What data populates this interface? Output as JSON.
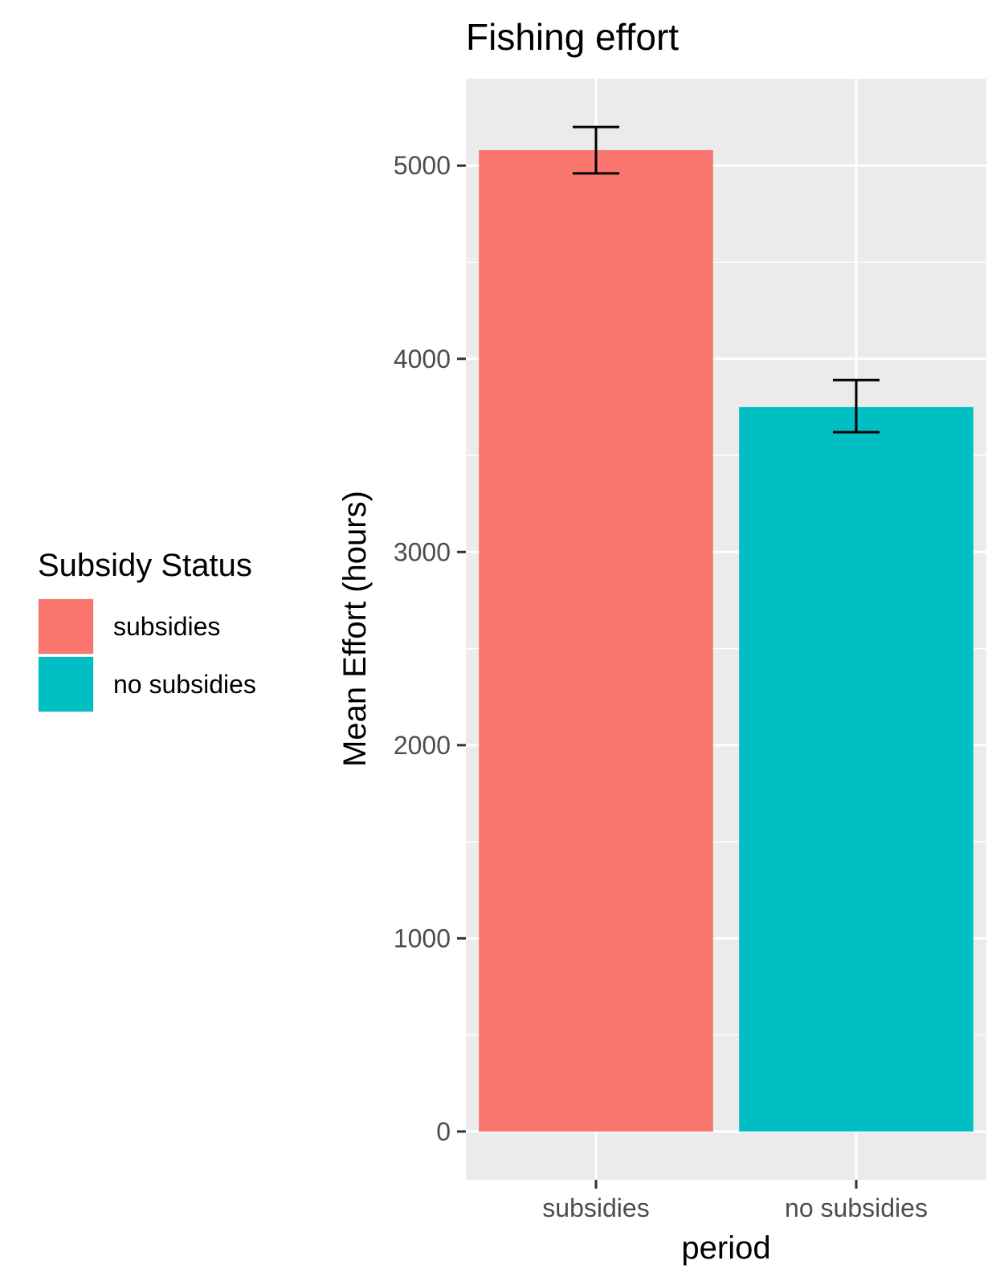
{
  "chart_data": {
    "type": "bar",
    "title": "Fishing effort",
    "xlabel": "period",
    "ylabel": "Mean Effort (hours)",
    "categories": [
      "subsidies",
      "no subsidies"
    ],
    "values": [
      5080,
      3750
    ],
    "error_bars": [
      {
        "low": 4960,
        "high": 5200
      },
      {
        "low": 3620,
        "high": 3890
      }
    ],
    "colors": [
      "#F8766D",
      "#00BFC4"
    ],
    "ylim": [
      -250,
      5450
    ],
    "y_ticks": [
      0,
      1000,
      2000,
      3000,
      4000,
      5000
    ],
    "y_tick_labels": [
      "0",
      "1000",
      "2000",
      "3000",
      "4000",
      "5000"
    ],
    "y_minor_ticks": [
      500,
      1500,
      2500,
      3500,
      4500
    ],
    "grid": true,
    "legend": {
      "title": "Subsidy Status",
      "position": "left",
      "entries": [
        {
          "label": "subsidies",
          "color": "#F8766D"
        },
        {
          "label": "no subsidies",
          "color": "#00BFC4"
        }
      ]
    }
  }
}
